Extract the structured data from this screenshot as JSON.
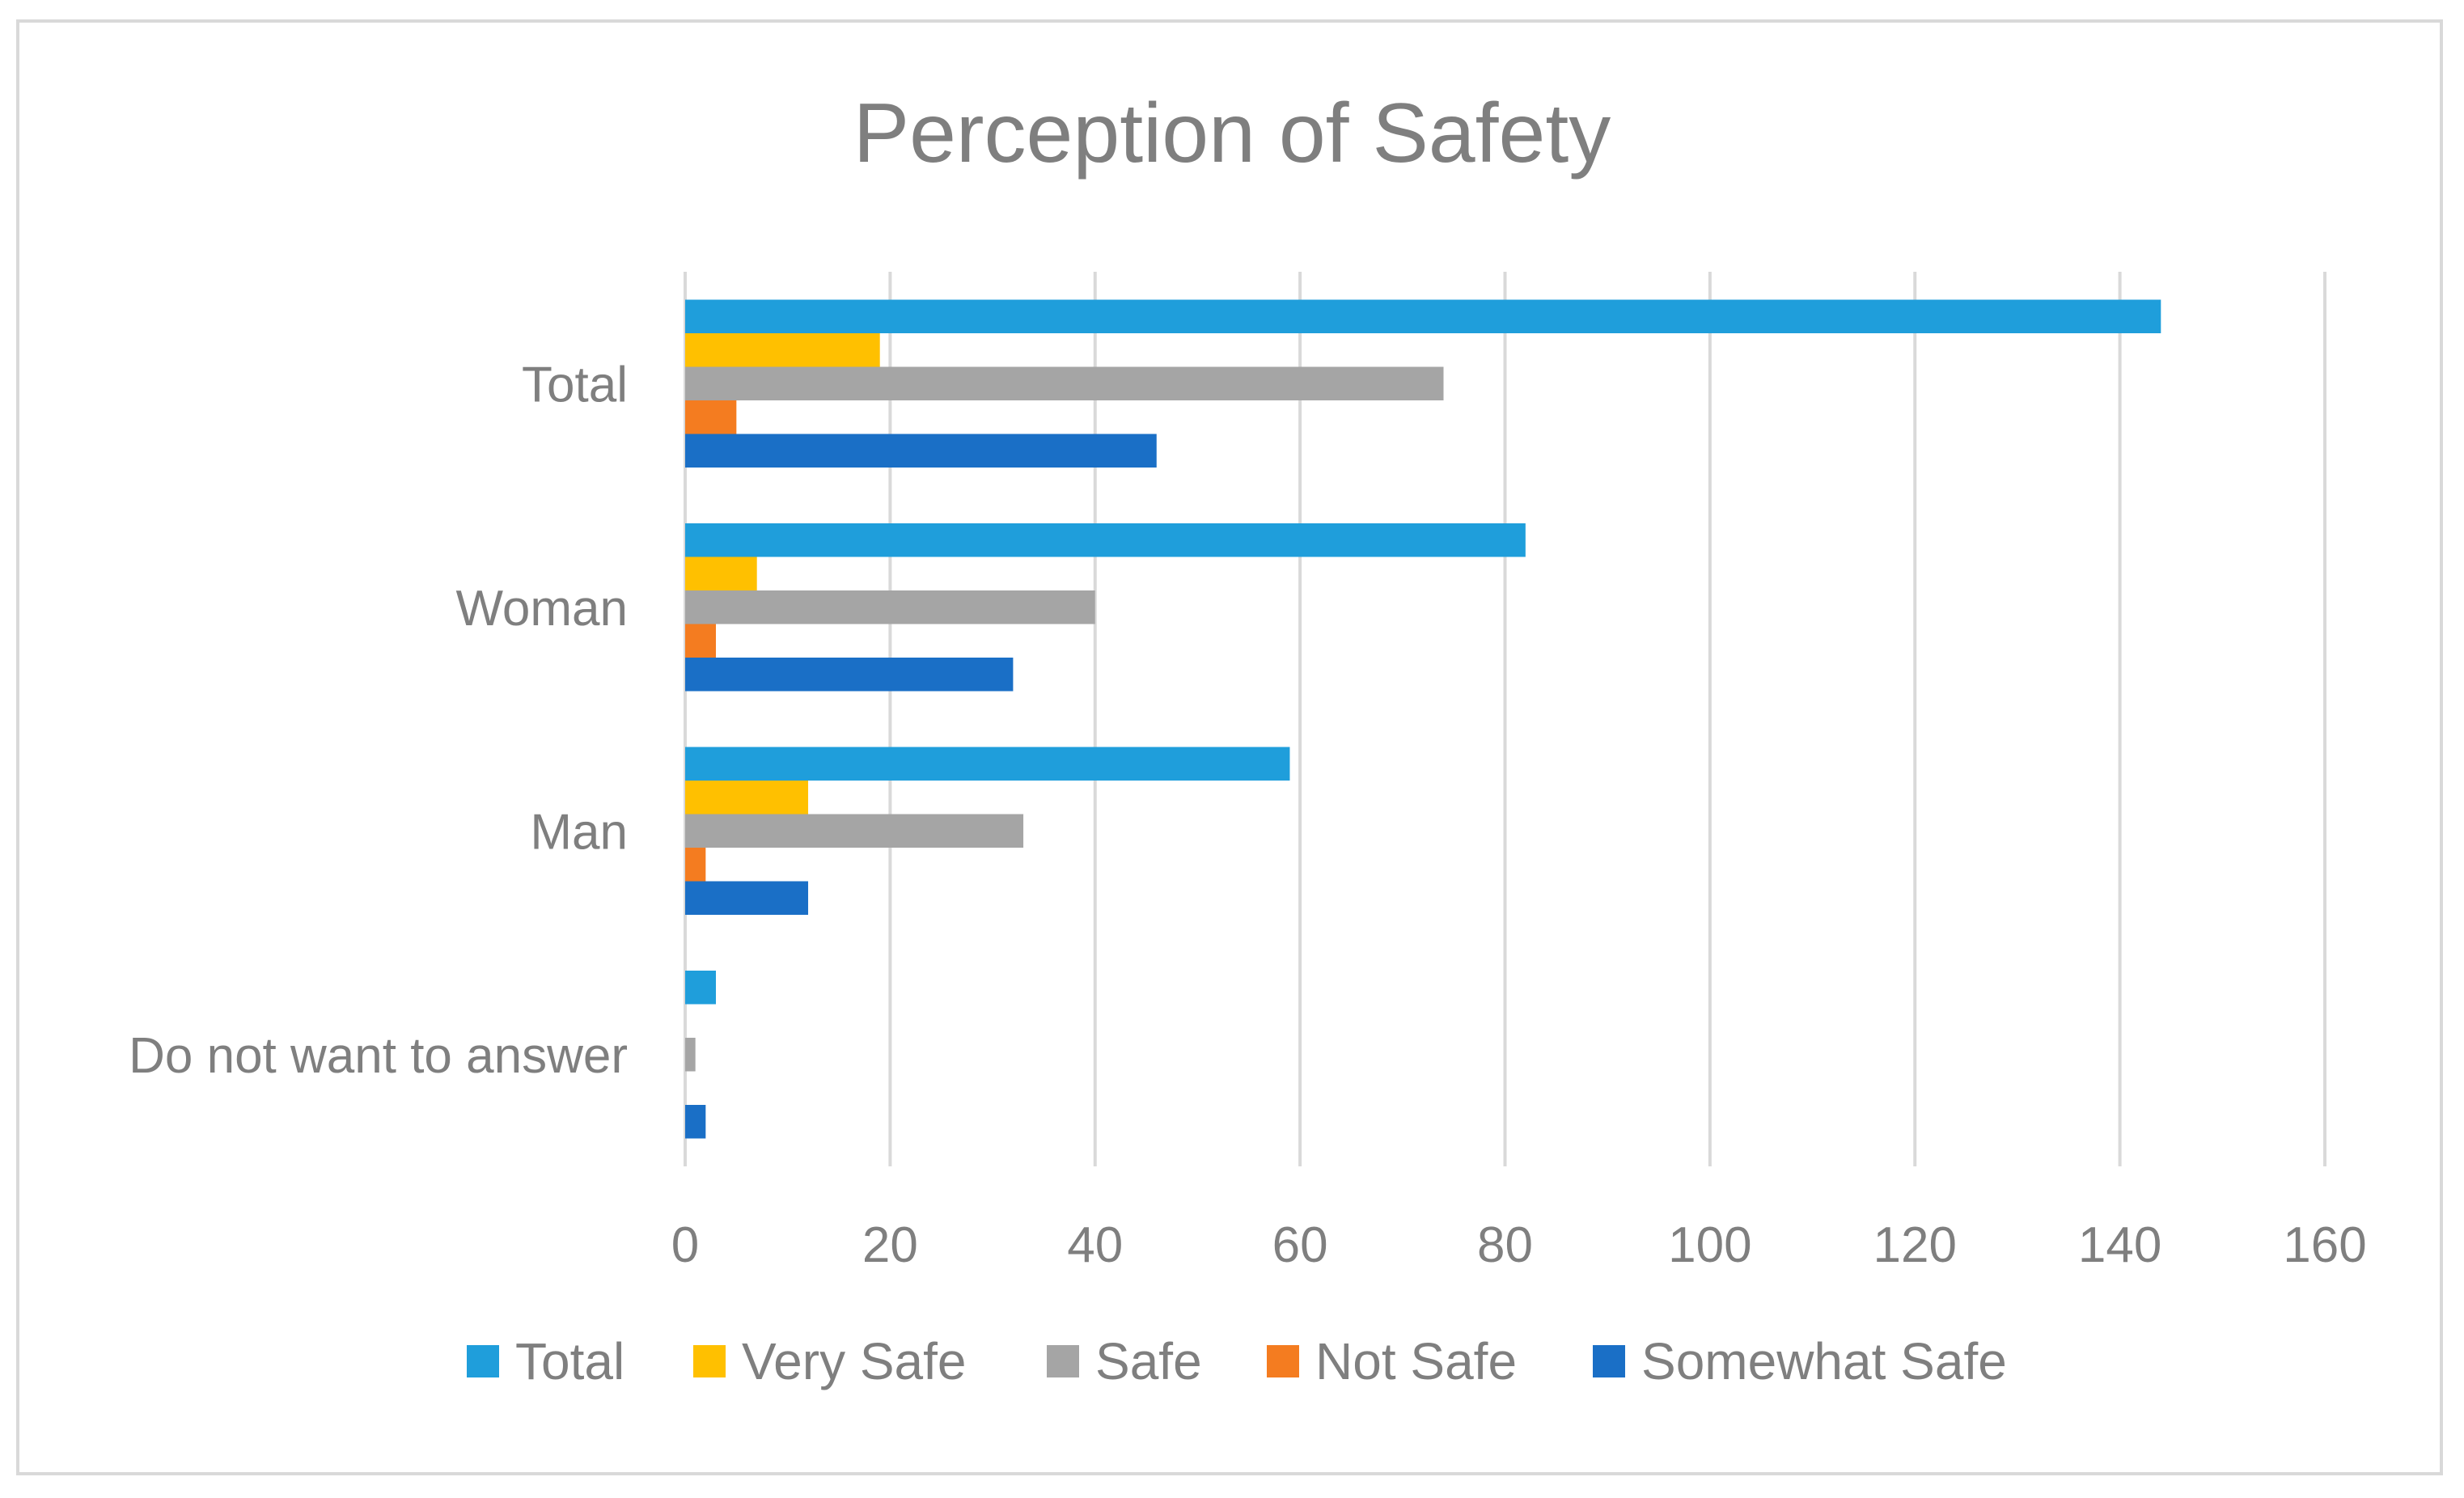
{
  "chart_data": {
    "type": "bar",
    "orientation": "horizontal",
    "title": "Perception of Safety",
    "xlabel": "",
    "ylabel": "",
    "categories": [
      "Total",
      "Woman",
      "Man",
      "Do not want to answer"
    ],
    "xlim": [
      0,
      160
    ],
    "ticks": [
      0,
      20,
      40,
      60,
      80,
      100,
      120,
      140,
      160
    ],
    "grid": true,
    "legend_position": "bottom",
    "series": [
      {
        "name": "Total",
        "color": "#1f9edb",
        "values": [
          144,
          82,
          59,
          3
        ]
      },
      {
        "name": "Very Safe",
        "color": "#ffc000",
        "values": [
          19,
          7,
          12,
          0
        ]
      },
      {
        "name": "Safe",
        "color": "#a5a5a5",
        "values": [
          74,
          40,
          33,
          1
        ]
      },
      {
        "name": "Not Safe",
        "color": "#f47c20",
        "values": [
          5,
          3,
          2,
          0
        ]
      },
      {
        "name": "Somewhat Safe",
        "color": "#1a6fc6",
        "values": [
          46,
          32,
          12,
          2
        ]
      }
    ]
  }
}
